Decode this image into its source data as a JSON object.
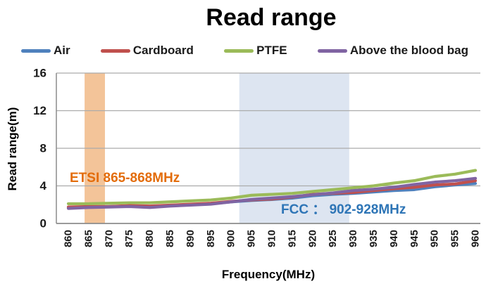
{
  "chart_data": {
    "type": "line",
    "title": "Read range",
    "xlabel": "Frequency(MHz)",
    "ylabel": "Read range(m)",
    "xlim": [
      860,
      960
    ],
    "ylim": [
      0,
      16
    ],
    "yticks": [
      0,
      4,
      8,
      12,
      16
    ],
    "grid": true,
    "legend_position": "top",
    "x": [
      860,
      865,
      870,
      875,
      880,
      885,
      890,
      895,
      900,
      905,
      910,
      915,
      920,
      925,
      930,
      935,
      940,
      945,
      950,
      955,
      960
    ],
    "series": [
      {
        "name": "Air",
        "color": "#4F81BD",
        "values": [
          1.7,
          1.75,
          1.8,
          1.85,
          1.8,
          1.9,
          2.0,
          2.1,
          2.3,
          2.45,
          2.55,
          2.7,
          2.95,
          3.1,
          3.2,
          3.35,
          3.5,
          3.6,
          3.9,
          4.1,
          4.25
        ]
      },
      {
        "name": "Cardboard",
        "color": "#C0504D",
        "values": [
          1.75,
          1.8,
          1.8,
          1.9,
          1.85,
          1.95,
          2.05,
          2.15,
          2.35,
          2.5,
          2.6,
          2.8,
          3.1,
          3.2,
          3.3,
          3.5,
          3.7,
          3.85,
          4.1,
          4.2,
          4.55
        ]
      },
      {
        "name": "PTFE",
        "color": "#9BBB59",
        "values": [
          2.1,
          2.1,
          2.15,
          2.2,
          2.2,
          2.3,
          2.4,
          2.5,
          2.7,
          3.0,
          3.1,
          3.2,
          3.4,
          3.6,
          3.8,
          4.0,
          4.3,
          4.55,
          5.0,
          5.25,
          5.65
        ]
      },
      {
        "name": "Above the blood bag",
        "color": "#8064A2",
        "values": [
          1.6,
          1.7,
          1.75,
          1.8,
          1.7,
          1.85,
          1.95,
          2.05,
          2.3,
          2.55,
          2.7,
          2.85,
          3.05,
          3.25,
          3.5,
          3.65,
          3.85,
          4.15,
          4.4,
          4.55,
          4.8
        ]
      }
    ],
    "bands": [
      {
        "label": "ETSI 865-868MHz",
        "from": 864,
        "to": 869,
        "fill": "#F2BE8E",
        "text_color": "#E36C0A"
      },
      {
        "label": "FCC ： 902-928MHz",
        "from": 902,
        "to": 929,
        "fill": "#D9E2F0",
        "text_color": "#2E75B6"
      }
    ]
  }
}
